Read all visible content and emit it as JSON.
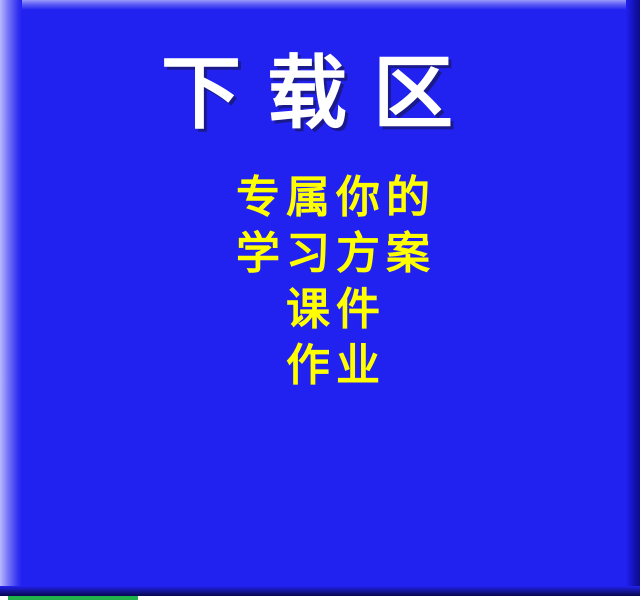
{
  "panel": {
    "title": "下载区",
    "lines": [
      "专属你的",
      "学习方案",
      "课件",
      "作业"
    ]
  },
  "colors": {
    "panel_background": "#2121f0",
    "title_text": "#ffffff",
    "line_text": "#ffff00"
  }
}
